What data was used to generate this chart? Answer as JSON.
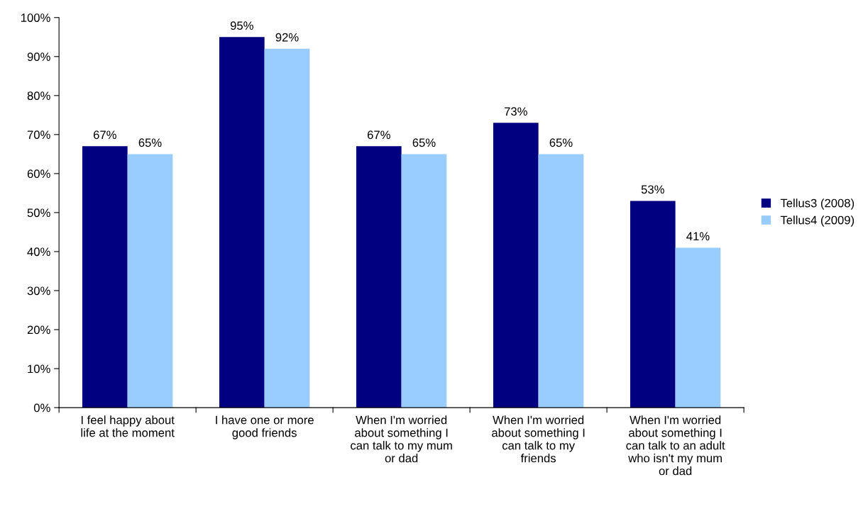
{
  "chart_data": {
    "type": "bar",
    "categories": [
      "I feel happy about\nlife at the moment",
      "I have one or more\ngood friends",
      "When I'm worried\nabout something I\ncan talk to my mum\nor dad",
      "When I'm worried\nabout something I\ncan talk to my\nfriends",
      "When I'm worried\nabout something I\ncan talk to an adult\nwho isn't my mum\nor dad"
    ],
    "series": [
      {
        "name": "Tellus3 (2008)",
        "color": "#000080",
        "values": [
          67,
          95,
          67,
          73,
          53
        ],
        "value_labels": [
          "67%",
          "95%",
          "67%",
          "73%",
          "53%"
        ]
      },
      {
        "name": "Tellus4 (2009)",
        "color": "#99ccff",
        "values": [
          65,
          92,
          65,
          65,
          41
        ],
        "value_labels": [
          "65%",
          "92%",
          "65%",
          "65%",
          "41%"
        ]
      }
    ],
    "ylim": [
      0,
      100
    ],
    "yticks": [
      {
        "value": 0,
        "label": "0%"
      },
      {
        "value": 10,
        "label": "10%"
      },
      {
        "value": 20,
        "label": "20%"
      },
      {
        "value": 30,
        "label": "30%"
      },
      {
        "value": 40,
        "label": "40%"
      },
      {
        "value": 50,
        "label": "50%"
      },
      {
        "value": 60,
        "label": "60%"
      },
      {
        "value": 70,
        "label": "70%"
      },
      {
        "value": 80,
        "label": "80%"
      },
      {
        "value": 90,
        "label": "90%"
      },
      {
        "value": 100,
        "label": "100%"
      }
    ],
    "grid": false,
    "legend": "right"
  }
}
